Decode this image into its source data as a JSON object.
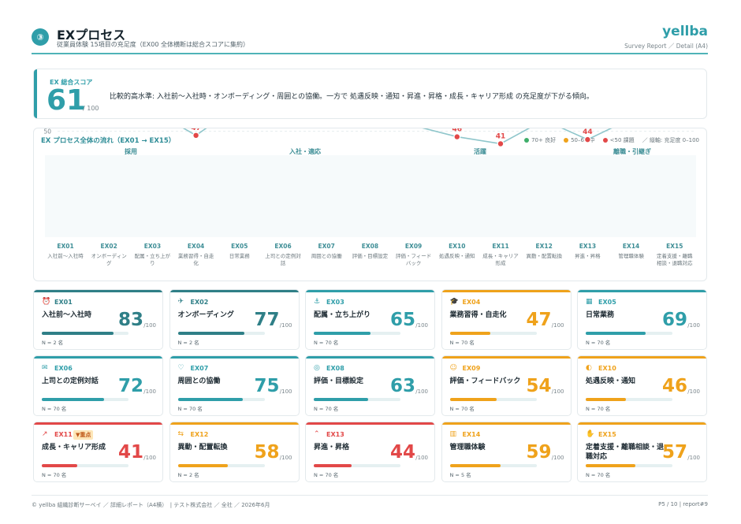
{
  "header": {
    "step_number": "③",
    "title": "EXプロセス",
    "subtitle": "従業員体験 15項目の充足度（EX00 全体横断は総合スコアに集約）",
    "brand": "yellba",
    "report_tag": "Survey Report ／ Detail (A4)"
  },
  "score": {
    "label": "EX 総合スコア",
    "value": "61",
    "max": "/ 100",
    "comment": "比較的高水準: 入社前〜入社時・オンボーディング・周囲との協働。一方で 処遇反映・通知・昇進・昇格・成長・キャリア形成 の充足度が下がる傾向。"
  },
  "flow": {
    "title": "EX プロセス全体の流れ（EX01 → EX15）",
    "legend": {
      "good": "70+ 良好",
      "mid": "50–69 中",
      "low": "<50 課題",
      "axis": "／ 縦軸: 充足度 0–100"
    },
    "phases": [
      "採用",
      "入社・適応",
      "活躍",
      "離職・引継ぎ"
    ]
  },
  "colors": {
    "good": "#2f9ea9",
    "good_dark": "#2f7f87",
    "mid": "#efa21b",
    "low": "#e24848",
    "legend_good": "#3fae6a",
    "line": "#8fc6cb"
  },
  "chart_data": {
    "type": "line",
    "ylim": [
      0,
      100
    ],
    "yticks": [
      "70",
      "50"
    ],
    "x": [
      "EX01",
      "EX02",
      "EX03",
      "EX04",
      "EX05",
      "EX06",
      "EX07",
      "EX08",
      "EX09",
      "EX10",
      "EX11",
      "EX12",
      "EX13",
      "EX14",
      "EX15"
    ],
    "x_sublabels": [
      "入社前〜入社時",
      "オンボーディング",
      "配属・立ち上がり",
      "業務習得・自走化",
      "日常業務",
      "上司との定例対話",
      "周囲との協働",
      "評価・目標設定",
      "評価・フィードバック",
      "処遇反映・通知",
      "成長・キャリア形成",
      "異動・配置転換",
      "昇進・昇格",
      "管理職体験",
      "定着支援・離職相談・退職対応"
    ],
    "values": [
      83,
      77,
      65,
      47,
      69,
      72,
      75,
      63,
      54,
      46,
      41,
      58,
      44,
      59,
      57
    ]
  },
  "cards": [
    {
      "code": "EX01",
      "icon": "door-icon",
      "glyph": "⏰",
      "name": "入社前〜入社時",
      "score": "83",
      "max": "/100",
      "n": "N = 2 名",
      "tier": "good-dark",
      "value": 83
    },
    {
      "code": "EX02",
      "icon": "plane-icon",
      "glyph": "✈",
      "name": "オンボーディング",
      "score": "77",
      "max": "/100",
      "n": "N = 2 名",
      "tier": "good-dark",
      "value": 77
    },
    {
      "code": "EX03",
      "icon": "anchor-icon",
      "glyph": "⚓",
      "name": "配属・立ち上がり",
      "score": "65",
      "max": "/100",
      "n": "N = 70 名",
      "tier": "good",
      "value": 65
    },
    {
      "code": "EX04",
      "icon": "graduation-icon",
      "glyph": "🎓",
      "name": "業務習得・自走化",
      "score": "47",
      "max": "/100",
      "n": "N = 70 名",
      "tier": "mid",
      "value": 47
    },
    {
      "code": "EX05",
      "icon": "calendar-icon",
      "glyph": "▦",
      "name": "日常業務",
      "score": "69",
      "max": "/100",
      "n": "N = 70 名",
      "tier": "good",
      "value": 69
    },
    {
      "code": "EX06",
      "icon": "chat-icon",
      "glyph": "✉",
      "name": "上司との定例対話",
      "score": "72",
      "max": "/100",
      "n": "N = 70 名",
      "tier": "good",
      "value": 72
    },
    {
      "code": "EX07",
      "icon": "handshake-icon",
      "glyph": "♡",
      "name": "周囲との協働",
      "score": "75",
      "max": "/100",
      "n": "N = 70 名",
      "tier": "good",
      "value": 75
    },
    {
      "code": "EX08",
      "icon": "target-icon",
      "glyph": "◎",
      "name": "評価・目標設定",
      "score": "63",
      "max": "/100",
      "n": "N = 70 名",
      "tier": "good",
      "value": 63
    },
    {
      "code": "EX09",
      "icon": "feedback-icon",
      "glyph": "☺",
      "name": "評価・フィードバック",
      "score": "54",
      "max": "/100",
      "n": "N = 70 名",
      "tier": "mid",
      "value": 54
    },
    {
      "code": "EX10",
      "icon": "coin-icon",
      "glyph": "◐",
      "name": "処遇反映・通知",
      "score": "46",
      "max": "/100",
      "n": "N = 70 名",
      "tier": "mid",
      "value": 46
    },
    {
      "code": "EX11",
      "icon": "trend-icon",
      "glyph": "↗",
      "name": "成長・キャリア形成",
      "score": "41",
      "max": "/100",
      "n": "N = 70 名",
      "tier": "low",
      "value": 41,
      "flag": "▼重点"
    },
    {
      "code": "EX12",
      "icon": "swap-icon",
      "glyph": "⇆",
      "name": "異動・配置転換",
      "score": "58",
      "max": "/100",
      "n": "N = 2 名",
      "tier": "mid",
      "value": 58
    },
    {
      "code": "EX13",
      "icon": "promotion-icon",
      "glyph": "⌃",
      "name": "昇進・昇格",
      "score": "44",
      "max": "/100",
      "n": "N = 70 名",
      "tier": "low",
      "value": 44
    },
    {
      "code": "EX14",
      "icon": "grid-icon",
      "glyph": "▥",
      "name": "管理職体験",
      "score": "59",
      "max": "/100",
      "n": "N = 5 名",
      "tier": "mid",
      "value": 59
    },
    {
      "code": "EX15",
      "icon": "hand-icon",
      "glyph": "✋",
      "name": "定着支援・離職相談・退職対応",
      "score": "57",
      "max": "/100",
      "n": "N = 70 名",
      "tier": "mid",
      "value": 57
    }
  ],
  "footer": {
    "left": "© yellba 組織診断サーベイ ／ 詳細レポート（A4横）　| テスト株式会社 ／ 全社 ／ 2026年6月",
    "right": "P5 / 10 | report#9"
  }
}
